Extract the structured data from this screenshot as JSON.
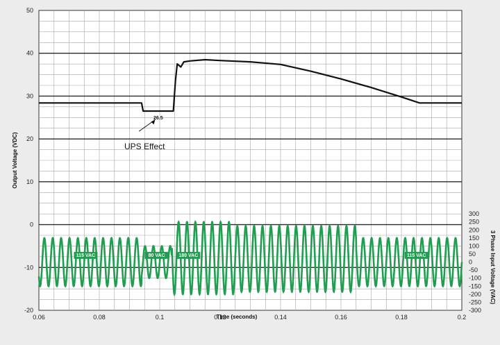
{
  "chart_data": {
    "type": "line",
    "xlabel": "Time (seconds)",
    "ylabel_left": "Output Voltage (VDC)",
    "ylabel_right": "3 Phase Input Voltage (VAC)",
    "xlim": [
      0.06,
      0.2
    ],
    "ylim_left": [
      -20,
      50
    ],
    "ylim_right": [
      -300,
      300
    ],
    "x_ticks": [
      "0.06",
      "0.08",
      "0.1",
      "0.12",
      "0.14",
      "0.16",
      "0.18",
      "0.2"
    ],
    "y_ticks_left": [
      "-20",
      "-10",
      "0",
      "10",
      "20",
      "30",
      "40",
      "50"
    ],
    "y_ticks_right": [
      "-300",
      "-250",
      "-200",
      "-150",
      "-100",
      "-50",
      "0",
      "50",
      "100",
      "150",
      "200",
      "250",
      "300"
    ],
    "grid": true,
    "colors": {
      "output": "#111111",
      "input": "#1f9e4f"
    },
    "series": [
      {
        "axis": "left",
        "points": [
          [
            0.06,
            28.4
          ],
          [
            0.094,
            28.4
          ],
          [
            0.0945,
            26.5
          ],
          [
            0.1045,
            26.5
          ],
          [
            0.1052,
            33.5
          ],
          [
            0.1058,
            37.5
          ],
          [
            0.107,
            36.8
          ],
          [
            0.108,
            38.0
          ],
          [
            0.11,
            38.2
          ],
          [
            0.115,
            38.5
          ],
          [
            0.12,
            38.3
          ],
          [
            0.13,
            38.0
          ],
          [
            0.14,
            37.4
          ],
          [
            0.15,
            35.8
          ],
          [
            0.16,
            34.0
          ],
          [
            0.17,
            32.0
          ],
          [
            0.18,
            29.8
          ],
          [
            0.186,
            28.4
          ],
          [
            0.2,
            28.4
          ]
        ]
      },
      {
        "axis": "right",
        "frequency_hz": 360,
        "amplitude_segments": [
          {
            "from": 0.06,
            "to": 0.094,
            "min": -150,
            "max": 150
          },
          {
            "from": 0.094,
            "to": 0.104,
            "min": -100,
            "max": 100
          },
          {
            "from": 0.104,
            "to": 0.125,
            "min": -200,
            "max": 250
          },
          {
            "from": 0.125,
            "to": 0.165,
            "min": -185,
            "max": 225
          },
          {
            "from": 0.165,
            "to": 0.2,
            "min": -150,
            "max": 150
          }
        ]
      }
    ],
    "annotations": [
      {
        "text": "26.5",
        "x": 0.0995,
        "y": 26.5
      },
      {
        "text": "UPS Effect",
        "x": 0.095,
        "y": 20
      },
      {
        "text": "115 VAC",
        "x": 0.0755,
        "y": -7.5
      },
      {
        "text": "80 VAC",
        "x": 0.099,
        "y": -7.5
      },
      {
        "text": "180 VAC",
        "x": 0.1095,
        "y": -7.5
      },
      {
        "text": "115 VAC",
        "x": 0.185,
        "y": -7.5
      }
    ]
  }
}
